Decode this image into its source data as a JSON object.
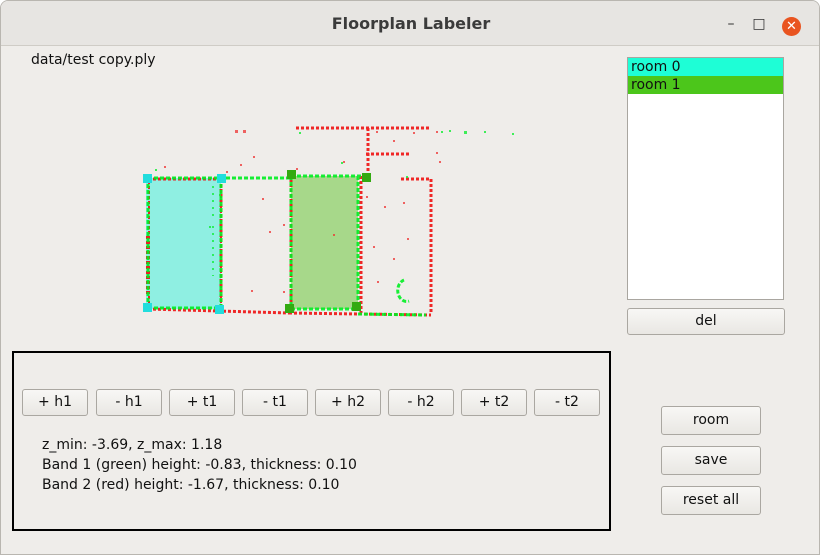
{
  "window": {
    "title": "Floorplan Labeler",
    "minimize_label": "–",
    "maximize_label": "□",
    "close_label": "✕"
  },
  "file_path": "data/test copy.ply",
  "rooms": {
    "items": [
      {
        "label": "room 0",
        "color": "#1efed6"
      },
      {
        "label": "room 1",
        "color": "#4cc61b"
      }
    ],
    "del_label": "del"
  },
  "controls": {
    "buttons": [
      "+ h1",
      "- h1",
      "+ t1",
      "- t1",
      "+ h2",
      "- h2",
      "+ t2",
      "- t2"
    ]
  },
  "info": {
    "z_range": "z_min: -3.69, z_max: 1.18",
    "band1": "Band 1 (green) height: -0.83, thickness: 0.10",
    "band2": "Band 2 (red) height: -1.67, thickness: 0.10"
  },
  "actions": {
    "room_label": "room",
    "save_label": "save",
    "reset_label": "reset all"
  },
  "colors": {
    "room0_fill": "#7eeee0",
    "room1_fill": "#9fd57f",
    "band1": "#00ee22",
    "band2": "#ee1111",
    "room0_corner": "#22dddd",
    "room1_corner": "#33aa11"
  }
}
